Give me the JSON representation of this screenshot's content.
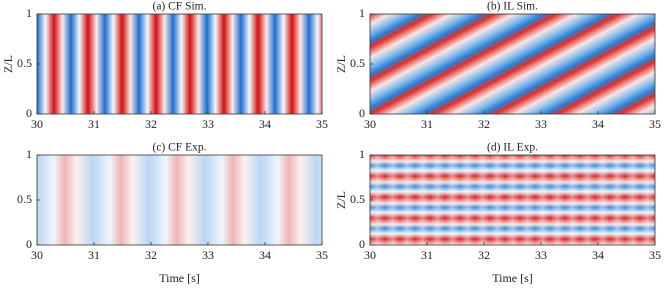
{
  "chart_data": [
    {
      "type": "heatmap",
      "title": "(a) CF Sim.",
      "ylabel": "Z/L",
      "xlim": [
        30,
        35
      ],
      "xticks": [
        30,
        31,
        32,
        33,
        34,
        35
      ],
      "ylim": [
        0,
        1
      ],
      "yticks": [
        0,
        0.5,
        1
      ]
    },
    {
      "type": "heatmap",
      "title": "(b) IL Sim.",
      "ylabel": "Z/L",
      "xlim": [
        30,
        35
      ],
      "xticks": [
        30,
        31,
        32,
        33,
        34,
        35
      ],
      "ylim": [
        0,
        1
      ],
      "yticks": [
        0,
        0.5,
        1
      ]
    },
    {
      "type": "heatmap",
      "title": "(c) CF Exp.",
      "xlabel": "Time [s]",
      "xlim": [
        30,
        35
      ],
      "xticks": [
        30,
        31,
        32,
        33,
        34,
        35
      ],
      "ylim": [
        0,
        1
      ],
      "yticks": [
        0,
        0.5,
        1
      ]
    },
    {
      "type": "heatmap",
      "title": "(d) IL Exp.",
      "xlabel": "Time [s]",
      "ylabel": "Z/L",
      "xlim": [
        30,
        35
      ],
      "xticks": [
        30,
        31,
        32,
        33,
        34,
        35
      ],
      "ylim": [
        0,
        1
      ],
      "yticks": [
        0,
        0.5,
        1
      ]
    }
  ]
}
